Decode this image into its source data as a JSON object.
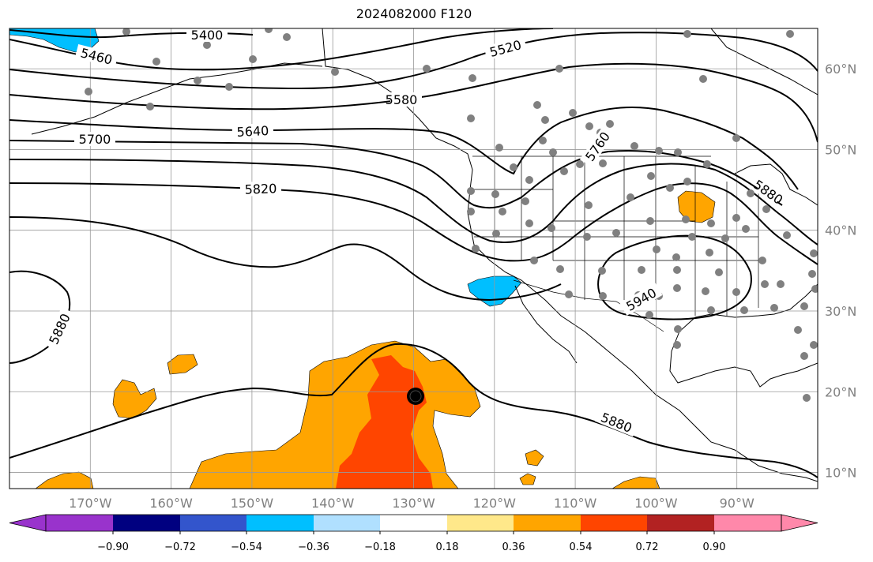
{
  "title": "2024082000 F120",
  "map": {
    "projection": "PlateCarree",
    "lon_range": [
      -180,
      -80
    ],
    "lat_range": [
      8,
      65
    ],
    "lon_ticks": [
      {
        "lon": -170,
        "label": "170°W"
      },
      {
        "lon": -160,
        "label": "160°W"
      },
      {
        "lon": -150,
        "label": "150°W"
      },
      {
        "lon": -140,
        "label": "140°W"
      },
      {
        "lon": -130,
        "label": "130°W"
      },
      {
        "lon": -120,
        "label": "120°W"
      },
      {
        "lon": -110,
        "label": "110°W"
      },
      {
        "lon": -100,
        "label": "100°W"
      },
      {
        "lon": -90,
        "label": "90°W"
      }
    ],
    "lat_ticks": [
      {
        "lat": 10,
        "label": "10°N"
      },
      {
        "lat": 20,
        "label": "20°N"
      },
      {
        "lat": 30,
        "label": "30°N"
      },
      {
        "lat": 40,
        "label": "40°N"
      },
      {
        "lat": 50,
        "label": "50°N"
      },
      {
        "lat": 60,
        "label": "60°N"
      }
    ],
    "gridlines": true,
    "contour_labels": [
      "5400",
      "5460",
      "5520",
      "5580",
      "5640",
      "5700",
      "5760",
      "5820",
      "5880",
      "5880",
      "5880",
      "5880",
      "5940"
    ],
    "storm_center": {
      "lon": -130,
      "lat": 19.5
    },
    "station_dots_color": "#808080"
  },
  "colorbar": {
    "colors": [
      "#9933cc",
      "#000080",
      "#3355cc",
      "#00bfff",
      "#b0e0ff",
      "#ffffff",
      "#ffe88a",
      "#ffa500",
      "#ff4500",
      "#b22222",
      "#ff88aa"
    ],
    "tick_labels": [
      "−0.90",
      "−0.72",
      "−0.54",
      "−0.36",
      "−0.18",
      "0.18",
      "0.36",
      "0.54",
      "0.72",
      "0.90"
    ]
  }
}
